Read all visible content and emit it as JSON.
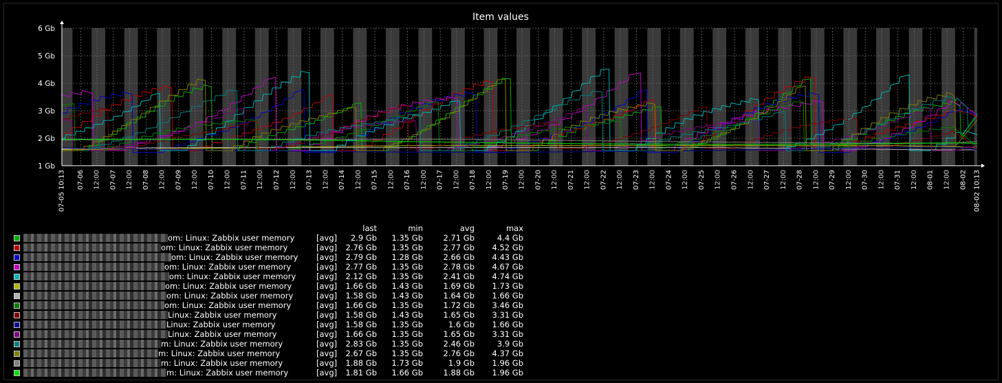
{
  "chart_data": {
    "type": "line",
    "title": "Item values",
    "ylim": [
      1,
      6
    ],
    "y_ticks": [
      "1 Gb",
      "2 Gb",
      "3 Gb",
      "4 Gb",
      "5 Gb",
      "6 Gb"
    ],
    "x_start_label": "07-05 10:13",
    "x_end_label": "08-02 10:13",
    "x_tick_labels": [
      "07-06",
      "12:00",
      "07-07",
      "12:00",
      "07-08",
      "12:00",
      "07-09",
      "12:00",
      "07-10",
      "12:00",
      "07-11",
      "12:00",
      "07-12",
      "12:00",
      "07-13",
      "12:00",
      "07-14",
      "12:00",
      "07-15",
      "12:00",
      "07-16",
      "12:00",
      "07-17",
      "12:00",
      "07-18",
      "12:00",
      "07-19",
      "12:00",
      "07-20",
      "12:00",
      "07-21",
      "12:00",
      "07-22",
      "12:00",
      "07-23",
      "12:00",
      "07-24",
      "12:00",
      "07-25",
      "12:00",
      "07-26",
      "12:00",
      "07-27",
      "12:00",
      "07-28",
      "12:00",
      "07-29",
      "12:00",
      "07-30",
      "12:00",
      "07-31",
      "12:00",
      "08-01",
      "12:00",
      "08-02"
    ],
    "grid": true,
    "legend_columns": [
      "last",
      "min",
      "avg",
      "max"
    ],
    "series": [
      {
        "name": "om: Linux: Zabbix user memory",
        "func": "[avg]",
        "color": "#00b000",
        "last": "2.9 Gb",
        "min": "1.35 Gb",
        "avg": "2.71 Gb",
        "max": "4.4 Gb"
      },
      {
        "name": "om: Linux: Zabbix user memory",
        "func": "[avg]",
        "color": "#c00000",
        "last": "2.76 Gb",
        "min": "1.35 Gb",
        "avg": "2.77 Gb",
        "max": "4.52 Gb"
      },
      {
        "name": "om: Linux: Zabbix user memory",
        "func": "[avg]",
        "color": "#0000c8",
        "last": "2.79 Gb",
        "min": "1.28 Gb",
        "avg": "2.66 Gb",
        "max": "4.43 Gb"
      },
      {
        "name": "om: Linux: Zabbix user memory",
        "func": "[avg]",
        "color": "#c000c0",
        "last": "2.77 Gb",
        "min": "1.35 Gb",
        "avg": "2.78 Gb",
        "max": "4.67 Gb"
      },
      {
        "name": "om: Linux: Zabbix user memory",
        "func": "[avg]",
        "color": "#00b4b4",
        "last": "2.12 Gb",
        "min": "1.35 Gb",
        "avg": "2.41 Gb",
        "max": "4.74 Gb"
      },
      {
        "name": "om: Linux: Zabbix user memory",
        "func": "[avg]",
        "color": "#b4b400",
        "last": "1.66 Gb",
        "min": "1.43 Gb",
        "avg": "1.69 Gb",
        "max": "1.73 Gb"
      },
      {
        "name": "om: Linux: Zabbix user memory",
        "func": "[avg]",
        "color": "#b4b4b4",
        "last": "1.58 Gb",
        "min": "1.43 Gb",
        "avg": "1.64 Gb",
        "max": "1.66 Gb"
      },
      {
        "name": "om: Linux: Zabbix user memory",
        "func": "[avg]",
        "color": "#008000",
        "last": "1.66 Gb",
        "min": "1.35 Gb",
        "avg": "1.72 Gb",
        "max": "3.46 Gb"
      },
      {
        "name": "Linux: Zabbix user memory",
        "func": "[avg]",
        "color": "#800000",
        "last": "1.58 Gb",
        "min": "1.43 Gb",
        "avg": "1.65 Gb",
        "max": "3.31 Gb"
      },
      {
        "name": "Linux: Zabbix user memory",
        "func": "[avg]",
        "color": "#000090",
        "last": "1.58 Gb",
        "min": "1.35 Gb",
        "avg": "1.6 Gb",
        "max": "1.66 Gb"
      },
      {
        "name": "Linux: Zabbix user memory",
        "func": "[avg]",
        "color": "#800080",
        "last": "1.66 Gb",
        "min": "1.35 Gb",
        "avg": "1.65 Gb",
        "max": "3.31 Gb"
      },
      {
        "name": "m: Linux: Zabbix user memory",
        "func": "[avg]",
        "color": "#008080",
        "last": "2.83 Gb",
        "min": "1.35 Gb",
        "avg": "2.46 Gb",
        "max": "3.9 Gb"
      },
      {
        "name": "m: Linux: Zabbix user memory",
        "func": "[avg]",
        "color": "#808000",
        "last": "2.67 Gb",
        "min": "1.35 Gb",
        "avg": "2.76 Gb",
        "max": "4.37 Gb"
      },
      {
        "name": "m: Linux: Zabbix user memory",
        "func": "[avg]",
        "color": "#808080",
        "last": "1.88 Gb",
        "min": "1.73 Gb",
        "avg": "1.9 Gb",
        "max": "1.96 Gb"
      },
      {
        "name": "m: Linux: Zabbix user memory",
        "func": "[avg]",
        "color": "#00e000",
        "last": "1.81 Gb",
        "min": "1.66 Gb",
        "avg": "1.88 Gb",
        "max": "1.96 Gb"
      }
    ]
  }
}
